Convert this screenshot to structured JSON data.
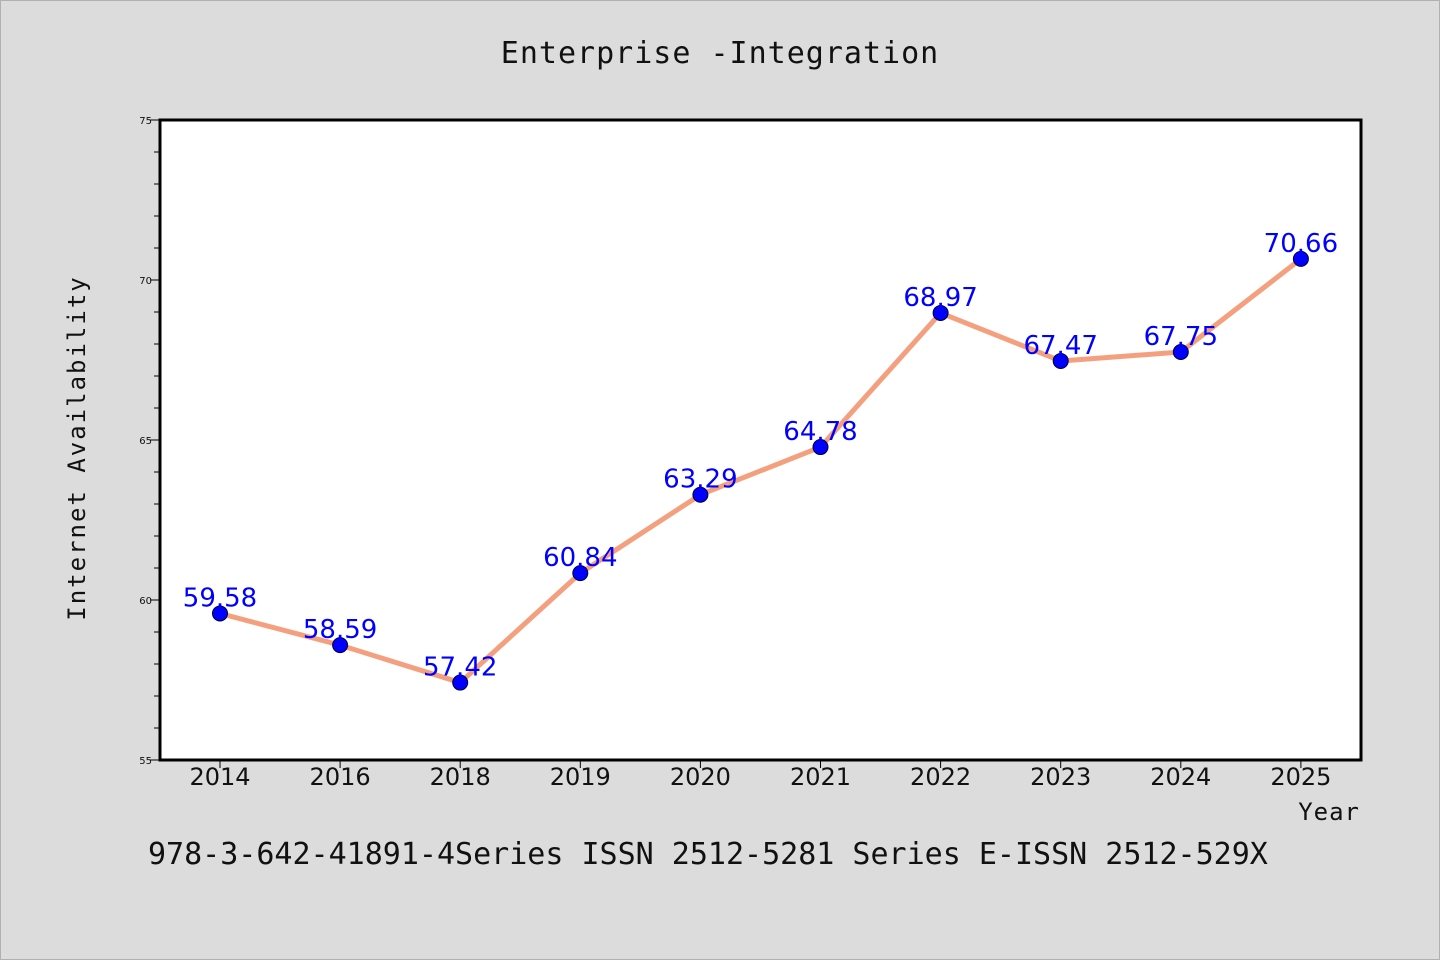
{
  "chart_data": {
    "type": "line",
    "title": "Enterprise -Integration",
    "xlabel": "Year",
    "ylabel": "Internet Availability",
    "categories": [
      "2014",
      "2016",
      "2018",
      "2019",
      "2020",
      "2021",
      "2022",
      "2023",
      "2024",
      "2025"
    ],
    "series": [
      {
        "values": [
          59.58,
          58.59,
          57.42,
          60.84,
          63.29,
          64.78,
          68.97,
          67.47,
          67.75,
          70.66
        ],
        "labels": [
          "59.58",
          "58.59",
          "57.42",
          "60.84",
          "63.29",
          "64.78",
          "68.97",
          "67.47",
          "67.75",
          "70.66"
        ],
        "line_color": "#f4a07f",
        "marker_color": "#0000ff",
        "label_color": "#0000ff"
      }
    ],
    "ylim": [
      55,
      75
    ],
    "yticks": [
      "55",
      "60",
      "65",
      "70",
      "75"
    ],
    "grid": false,
    "legend": "none"
  },
  "footer": "978-3-642-41891-4Series ISSN 2512-5281 Series E-ISSN 2512-529X"
}
